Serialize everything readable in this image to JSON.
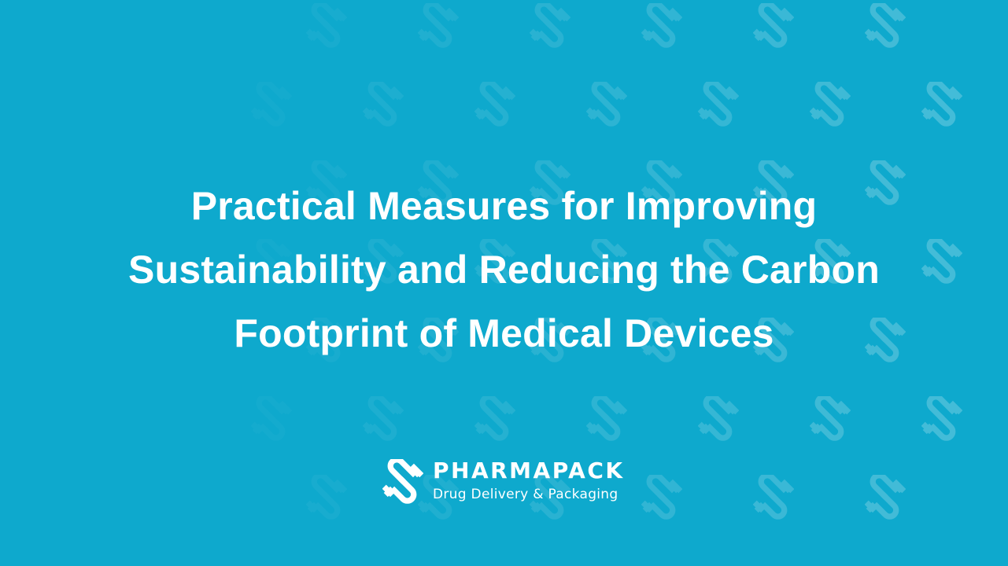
{
  "background_color": "#0ea9cd",
  "pattern_icon": "pharmapack-link-icon",
  "title": {
    "lines": [
      "Practical Measures for Improving",
      "Sustainability and Reducing the Carbon",
      "Footprint of Medical Devices"
    ]
  },
  "logo": {
    "icon": "pharmapack-link-icon",
    "brand": "PHARMAPACK",
    "tagline": "Drug Delivery & Packaging"
  }
}
